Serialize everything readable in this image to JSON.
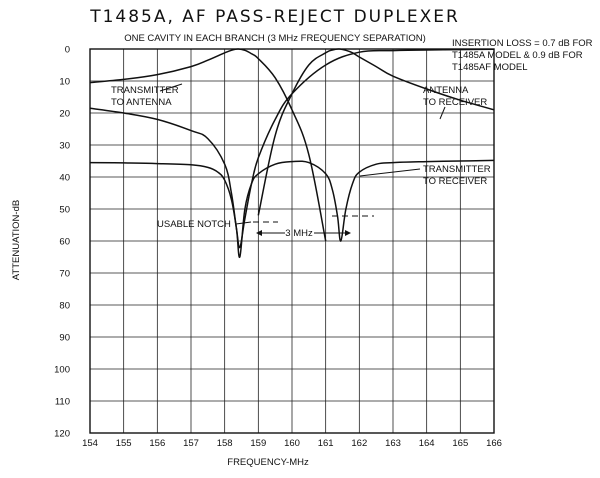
{
  "chart_data": {
    "type": "line",
    "title": "T1485A, AF PASS-REJECT DUPLEXER",
    "subtitle": "ONE CAVITY IN EACH BRANCH (3 MHz FREQUENCY SEPARATION)",
    "xlabel": "FREQUENCY-MHz",
    "ylabel": "ATTENUATION-dB",
    "xlim": [
      154,
      166
    ],
    "ylim": [
      0,
      120
    ],
    "y_inverted": true,
    "grid": true,
    "x_ticks": [
      "154",
      "155",
      "156",
      "157",
      "158",
      "159",
      "160",
      "161",
      "162",
      "163",
      "164",
      "165",
      "166"
    ],
    "y_ticks": [
      "0",
      "10",
      "20",
      "30",
      "40",
      "50",
      "60",
      "70",
      "80",
      "90",
      "100",
      "110",
      "120"
    ],
    "note_lines": [
      "INSERTION LOSS = 0.7 dB FOR",
      "T1485A MODEL & 0.9 dB FOR",
      "T1485AF MODEL"
    ],
    "annotations": {
      "transmitter_to_antenna": [
        "TRANSMITTER",
        "TO ANTENNA"
      ],
      "antenna_to_receiver": [
        "ANTENNA",
        "TO RECEIVER"
      ],
      "transmitter_to_receiver": [
        "TRANSMITTER",
        "TO RECEIVER"
      ],
      "usable_notch": "USABLE NOTCH",
      "separation": "3 MHz"
    },
    "series": [
      {
        "x": [
          154.0,
          155.0,
          156.0,
          157.0,
          157.5,
          158.0,
          158.2,
          158.4,
          158.6,
          158.8,
          159.0,
          159.5,
          160.0,
          160.5,
          161.0
        ],
        "values": [
          10.5,
          9.5,
          8.0,
          5.5,
          3.5,
          1.2,
          0.4,
          0.0,
          0.4,
          1.5,
          3.0,
          9.0,
          19.0,
          33.0,
          60.0
        ]
      },
      {
        "x": [
          154.0,
          155.0,
          156.0,
          157.0,
          157.5,
          158.0,
          158.2,
          158.35,
          158.45,
          158.6,
          158.8,
          159.0,
          159.5,
          160.0,
          161.0,
          162.0,
          163.0,
          164.0,
          165.0,
          166.0
        ],
        "values": [
          18.5,
          20.0,
          22.0,
          25.5,
          28.0,
          36.0,
          45.0,
          56.0,
          62.0,
          53.0,
          42.0,
          34.0,
          22.0,
          14.0,
          5.0,
          1.0,
          0.5,
          0.3,
          0.2,
          0.1
        ]
      },
      {
        "x": [
          154.0,
          155.0,
          156.0,
          157.0,
          157.5,
          157.8,
          158.0,
          158.2,
          158.35,
          158.45,
          158.6,
          158.8,
          159.0,
          159.5,
          160.0,
          160.5,
          161.0,
          161.2,
          161.35,
          161.45,
          161.6,
          161.8,
          162.0,
          162.5,
          163.0,
          164.0,
          165.0,
          166.0
        ],
        "values": [
          35.5,
          35.6,
          35.8,
          36.2,
          37.0,
          38.5,
          41.0,
          47.0,
          56.0,
          65.0,
          50.0,
          42.0,
          39.0,
          36.0,
          35.2,
          35.5,
          39.0,
          44.0,
          52.0,
          60.0,
          50.0,
          42.0,
          38.5,
          36.0,
          35.5,
          35.2,
          35.0,
          34.8
        ]
      },
      {
        "x": [
          159.0,
          159.5,
          160.0,
          160.5,
          161.0,
          161.2,
          161.4,
          161.6,
          161.8,
          162.0,
          162.5,
          163.0,
          164.0,
          165.0,
          166.0
        ],
        "values": [
          52.0,
          27.0,
          14.0,
          5.0,
          1.2,
          0.3,
          0.0,
          0.4,
          1.2,
          2.5,
          5.5,
          8.5,
          12.5,
          16.0,
          19.0
        ]
      }
    ]
  }
}
